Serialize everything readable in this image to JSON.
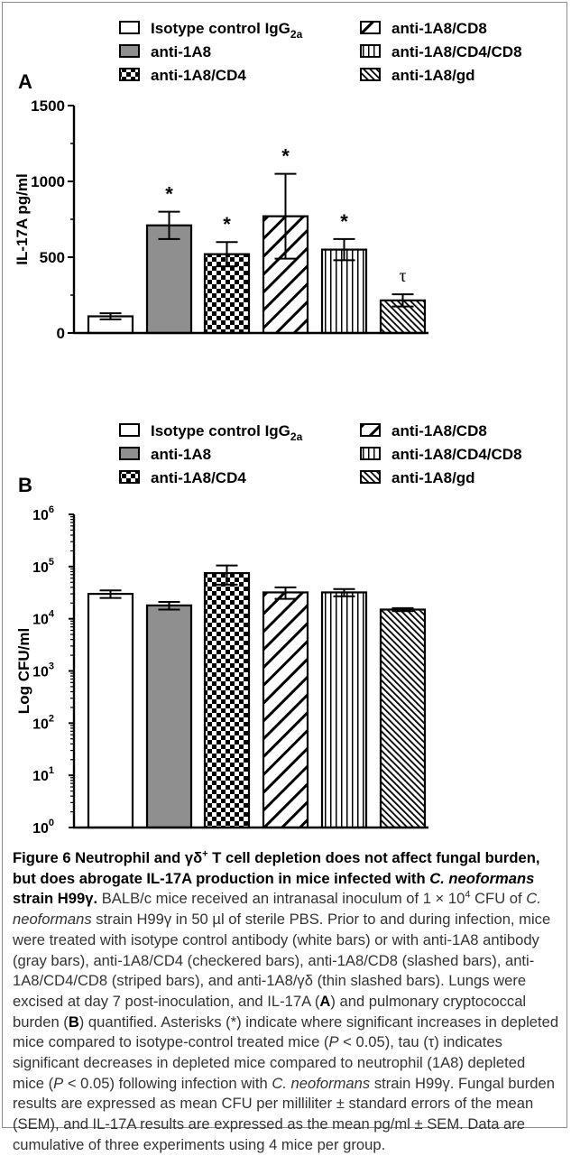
{
  "legend_items": [
    {
      "label": "Isotype control IgG",
      "sub": "2a",
      "pattern": "white"
    },
    {
      "label": "anti-1A8",
      "sub": "",
      "pattern": "gray"
    },
    {
      "label": "anti-1A8/CD4",
      "sub": "",
      "pattern": "checker"
    },
    {
      "label": "anti-1A8/CD8",
      "sub": "",
      "pattern": "slash"
    },
    {
      "label": "anti-1A8/CD4/CD8",
      "sub": "",
      "pattern": "vstripe"
    },
    {
      "label": "anti-1A8/gd",
      "sub": "",
      "pattern": "thinslash"
    }
  ],
  "colors": {
    "gray_bar": "#8f8f8f",
    "axis": "#000000",
    "caption": "#333333"
  },
  "chart_data": [
    {
      "panel": "A",
      "type": "bar",
      "ylabel": "IL-17A pg/ml",
      "ylim": [
        0,
        1500
      ],
      "yticks": [
        "0",
        "500",
        "1000",
        "1500"
      ],
      "categories": [
        "Isotype control IgG2a",
        "anti-1A8",
        "anti-1A8/CD4",
        "anti-1A8/CD8",
        "anti-1A8/CD4/CD8",
        "anti-1A8/gd"
      ],
      "values": [
        110,
        710,
        520,
        770,
        550,
        215
      ],
      "sem": [
        20,
        90,
        80,
        280,
        70,
        40
      ],
      "annotations": [
        "",
        "*",
        "*",
        "*",
        "*",
        "τ"
      ]
    },
    {
      "panel": "B",
      "type": "bar",
      "ylabel": "Log CFU/ml",
      "scale": "log",
      "ylim": [
        1,
        1000000
      ],
      "ytick_base": "10",
      "ytick_exps": [
        "0",
        "1",
        "2",
        "3",
        "4",
        "5",
        "6"
      ],
      "categories": [
        "Isotype control IgG2a",
        "anti-1A8",
        "anti-1A8/CD4",
        "anti-1A8/CD8",
        "anti-1A8/CD4/CD8",
        "anti-1A8/gd"
      ],
      "values": [
        30000,
        18000,
        75000,
        32000,
        32000,
        15000
      ],
      "sem": [
        5000,
        3000,
        30000,
        8000,
        5000,
        1000
      ]
    }
  ],
  "caption": {
    "figure_label": "Figure 6",
    "title_1": "Neutrophil and γδ",
    "title_sup": "+",
    "title_2": "T cell depletion does not affect fungal burden, but does abrogate IL-17A production in mice infected with",
    "title_species": "C. neoformans",
    "title_3": "strain H99γ.",
    "body_1": "BALB/c mice received an intranasal inoculum of 1 × 10",
    "body_1_sup": "4",
    "body_2": "CFU of",
    "body_species_1": "C. neoformans",
    "body_3": "strain H99γ in 50 µl of sterile PBS. Prior to and during infection, mice were treated with isotype control antibody (white bars) or with anti-1A8 antibody (gray bars), anti-1A8/CD4 (checkered bars), anti-1A8/CD8 (slashed bars), anti-1A8/CD4/CD8 (striped bars), and anti-1A8/γδ (thin slashed bars). Lungs were excised at day 7 post-inoculation, and IL-17A (",
    "body_A": "A",
    "body_4": ") and pulmonary cryptococcal burden (",
    "body_B": "B",
    "body_5": ") quantified. Asterisks (*) indicate where significant increases in depleted mice compared to isotype-control treated mice (",
    "body_P1": "P",
    "body_6": "< 0.05), tau (τ) indicates significant decreases in depleted mice compared to neutrophil (1A8) depleted mice (",
    "body_P2": "P",
    "body_7": "< 0.05) following infection with",
    "body_species_2": "C. neoformans",
    "body_8": "strain H99γ. Fungal burden results are expressed as mean CFU per milliliter ± standard errors of the mean (SEM), and IL-17A results are expressed as the mean pg/ml ± SEM. Data are cumulative of three experiments using 4 mice per group."
  }
}
